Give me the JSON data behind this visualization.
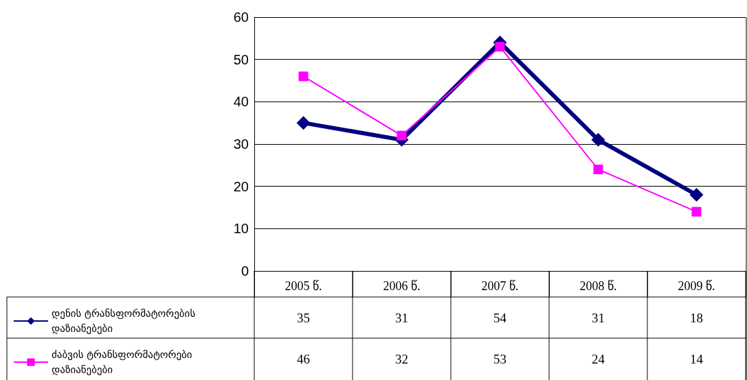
{
  "chart_data": {
    "type": "line",
    "categories": [
      "2005 წ.",
      "2006 წ.",
      "2007 წ.",
      "2008 წ.",
      "2009 წ."
    ],
    "series": [
      {
        "name": "დენის ტრანსფორმატორების დაზიანებები",
        "color": "#000080",
        "marker": "diamond",
        "values": [
          35,
          31,
          54,
          31,
          18
        ]
      },
      {
        "name": "ძაბვის ტრანსფორმატორები დაზიანებები",
        "color": "#ff00ff",
        "marker": "square",
        "values": [
          46,
          32,
          53,
          24,
          14
        ]
      }
    ],
    "ylim": [
      0,
      60
    ],
    "yticks": [
      0,
      10,
      20,
      30,
      40,
      50,
      60
    ],
    "grid": "y",
    "legend": "bottom left",
    "data_labels": true
  }
}
